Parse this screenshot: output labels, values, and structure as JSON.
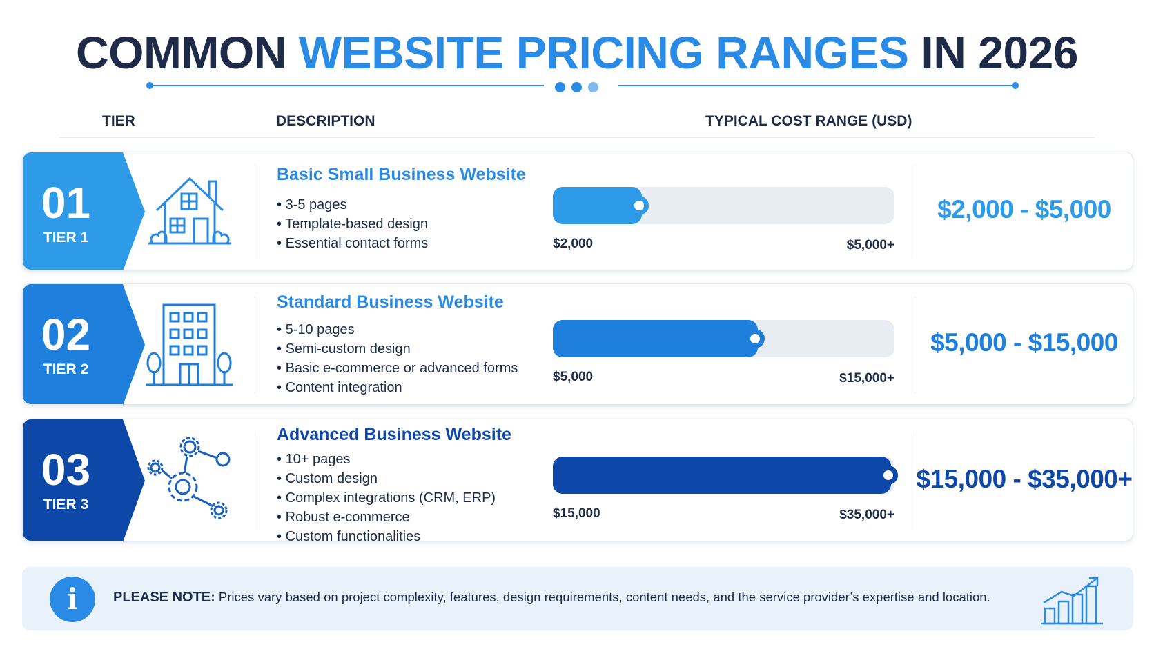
{
  "title": {
    "part1": "COMMON ",
    "part2": "WEBSITE PRICING RANGES",
    "part3": " IN 2026"
  },
  "columns": {
    "tier": "TIER",
    "description": "DESCRIPTION",
    "cost": "TYPICAL COST RANGE (USD)"
  },
  "tiers": [
    {
      "number": "01",
      "label": "TIER 1",
      "icon": "house-icon",
      "title": "Basic Small Business Website",
      "bullets": [
        "3-5 pages",
        "Template-based design",
        "Essential contact forms"
      ],
      "range_min": "$2,000",
      "range_max": "$5,000+",
      "price": "$2,000 - $5,000",
      "fill_fraction": 0.26,
      "color": "#2e9be8"
    },
    {
      "number": "02",
      "label": "TIER 2",
      "icon": "office-building-icon",
      "title": "Standard Business Website",
      "bullets": [
        "5-10 pages",
        "Semi-custom design",
        "Basic e-commerce or advanced forms",
        "Content integration"
      ],
      "range_min": "$5,000",
      "range_max": "$15,000+",
      "price": "$5,000 - $15,000",
      "fill_fraction": 0.6,
      "color": "#1f7fdc"
    },
    {
      "number": "03",
      "label": "TIER 3",
      "icon": "gears-network-icon",
      "title": "Advanced Business Website",
      "bullets": [
        "10+ pages",
        "Custom design",
        "Complex integrations (CRM, ERP)",
        "Robust e-commerce",
        "Custom functionalities"
      ],
      "range_min": "$15,000",
      "range_max": "$35,000+",
      "price": "$15,000 - $35,000+",
      "fill_fraction": 0.99,
      "color": "#0d47a8"
    }
  ],
  "note": {
    "label": "PLEASE NOTE:",
    "text": " Prices vary based on project complexity, features, design requirements, content needs, and the service provider’s expertise and location.",
    "icon": "info-icon",
    "side_icon": "growth-chart-icon"
  }
}
